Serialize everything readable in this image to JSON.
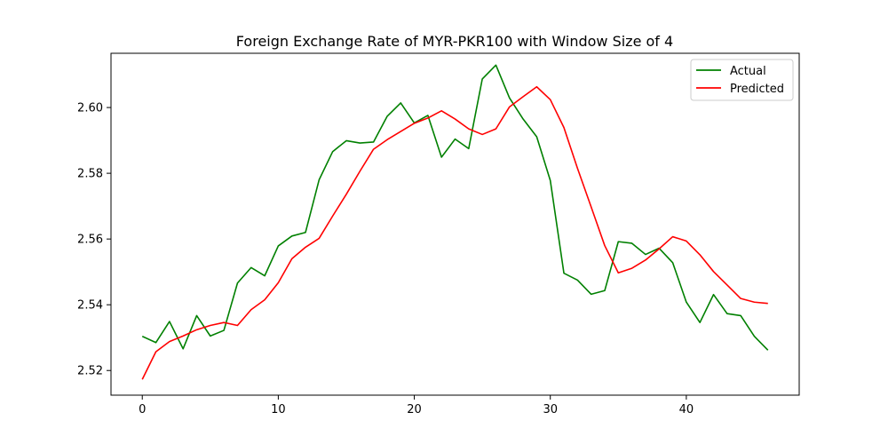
{
  "chart_data": {
    "type": "line",
    "title": "Foreign Exchange Rate of MYR-PKR100 with Window Size of 4",
    "xlabel": "",
    "ylabel": "",
    "xlim": [
      -2.3,
      48.3
    ],
    "ylim": [
      2.5125,
      2.6165
    ],
    "xticks": [
      0,
      10,
      20,
      30,
      40
    ],
    "yticks": [
      2.52,
      2.54,
      2.56,
      2.58,
      2.6
    ],
    "ytick_labels": [
      "2.52",
      "2.54",
      "2.56",
      "2.58",
      "2.60"
    ],
    "grid": false,
    "legend_position": "top-right",
    "series": [
      {
        "name": "Actual",
        "color": "#008000",
        "values": [
          2.5304,
          2.5285,
          2.5349,
          2.5266,
          2.5367,
          2.5305,
          2.5322,
          2.5466,
          2.5513,
          2.5488,
          2.5579,
          2.5609,
          2.562,
          2.578,
          2.5866,
          2.5899,
          2.5892,
          2.5895,
          2.5973,
          2.6014,
          2.5953,
          2.5976,
          2.5849,
          2.5904,
          2.5875,
          2.6087,
          2.6129,
          2.6029,
          2.5965,
          2.5911,
          2.5778,
          2.5496,
          2.5475,
          2.5432,
          2.5443,
          2.5592,
          2.5587,
          2.5553,
          2.5572,
          2.5528,
          2.5408,
          2.5346,
          2.5431,
          2.5373,
          2.5367,
          2.5304,
          2.5262
        ]
      },
      {
        "name": "Predicted",
        "color": "#ff0000",
        "values": [
          2.5173,
          2.5257,
          2.5288,
          2.5305,
          2.5324,
          2.5337,
          2.5346,
          2.5337,
          2.5385,
          2.5415,
          2.5467,
          2.554,
          2.5575,
          2.5602,
          2.567,
          2.5736,
          2.5806,
          2.5873,
          2.5902,
          2.5927,
          2.5952,
          2.5968,
          2.599,
          2.5965,
          2.5935,
          2.5918,
          2.5935,
          2.6002,
          2.6033,
          2.6063,
          2.6024,
          2.5939,
          2.5815,
          2.5698,
          2.558,
          2.5497,
          2.5511,
          2.5536,
          2.557,
          2.5607,
          2.5594,
          2.5552,
          2.5501,
          2.546,
          2.5419,
          2.5408,
          2.5404
        ]
      }
    ]
  }
}
